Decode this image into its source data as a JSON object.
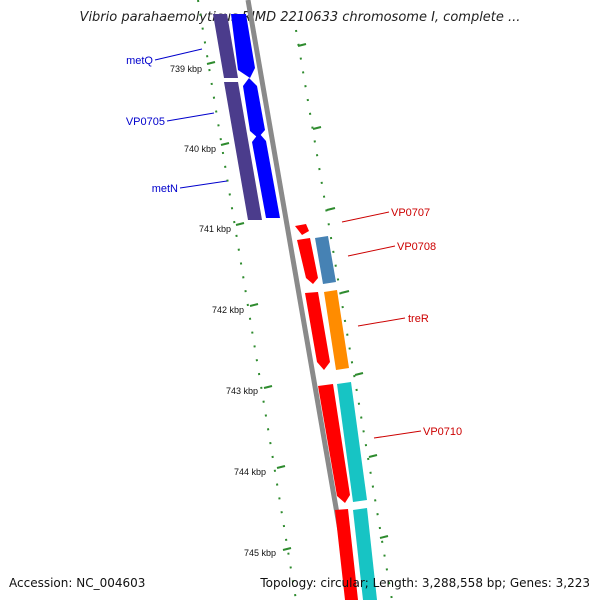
{
  "title": "Vibrio parahaemolyticus RIMD 2210633 chromosome I, complete ...",
  "footer": {
    "accession": "Accession: NC_004603",
    "summary": "Topology: circular; Length: 3,288,558 bp; Genes: 3,223"
  },
  "scale_labels": [
    "739 kbp",
    "740 kbp",
    "741 kbp",
    "742 kbp",
    "743 kbp",
    "744 kbp",
    "745 kbp"
  ],
  "gene_labels": {
    "forward": [
      "metQ",
      "VP0705",
      "metN"
    ],
    "reverse": [
      "VP0707",
      "VP0708",
      "treR",
      "VP0710"
    ]
  },
  "colors": {
    "forward_label": "#0000cc",
    "reverse_label": "#cc0000",
    "backbone": "#888888",
    "tick": "#2e7d1e",
    "cds_forward": "#0000ff",
    "cds_reverse": "#ff0000",
    "gene_purple": "#4b3c8c",
    "gene_steelblue": "#4682b4",
    "gene_orange": "#ff8c00",
    "gene_cyan": "#17c4c4"
  }
}
